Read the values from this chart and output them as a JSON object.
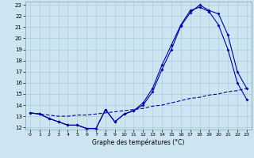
{
  "xlabel": "Graphe des températures (°C)",
  "bg_color": "#cce5f0",
  "line_color": "#0000aa",
  "grid_color": "#aacce0",
  "xlim": [
    -0.5,
    23.5
  ],
  "ylim": [
    11.8,
    23.3
  ],
  "xticks": [
    0,
    1,
    2,
    3,
    4,
    5,
    6,
    7,
    8,
    9,
    10,
    11,
    12,
    13,
    14,
    15,
    16,
    17,
    18,
    19,
    20,
    21,
    22,
    23
  ],
  "yticks": [
    12,
    13,
    14,
    15,
    16,
    17,
    18,
    19,
    20,
    21,
    22,
    23
  ],
  "line1_x": [
    0,
    1,
    2,
    3,
    4,
    5,
    6,
    7,
    8,
    9,
    10,
    11,
    12,
    13,
    14,
    15,
    16,
    17,
    18,
    19,
    20,
    21,
    22,
    23
  ],
  "line1_y": [
    13.3,
    13.2,
    12.8,
    12.5,
    12.2,
    12.2,
    11.9,
    11.9,
    13.6,
    12.5,
    13.2,
    13.5,
    14.0,
    15.2,
    17.2,
    19.0,
    21.1,
    22.3,
    23.0,
    22.5,
    22.2,
    20.3,
    17.0,
    15.5
  ],
  "line2_x": [
    0,
    1,
    2,
    3,
    4,
    5,
    6,
    7,
    8,
    9,
    10,
    11,
    12,
    13,
    14,
    15,
    16,
    17,
    18,
    19,
    20,
    21,
    22,
    23
  ],
  "line2_y": [
    13.3,
    13.2,
    12.8,
    12.5,
    12.2,
    12.2,
    11.9,
    11.9,
    13.6,
    12.5,
    13.2,
    13.5,
    14.2,
    15.5,
    17.6,
    19.4,
    21.2,
    22.5,
    22.8,
    22.4,
    21.2,
    19.0,
    16.0,
    14.5
  ],
  "line3_x": [
    0,
    1,
    2,
    3,
    4,
    5,
    6,
    7,
    8,
    9,
    10,
    11,
    12,
    13,
    14,
    15,
    16,
    17,
    18,
    19,
    20,
    21,
    22,
    23
  ],
  "line3_y": [
    13.3,
    13.2,
    13.1,
    13.0,
    13.0,
    13.1,
    13.1,
    13.2,
    13.3,
    13.4,
    13.5,
    13.6,
    13.7,
    13.9,
    14.0,
    14.2,
    14.4,
    14.6,
    14.7,
    14.9,
    15.0,
    15.2,
    15.3,
    15.5
  ]
}
